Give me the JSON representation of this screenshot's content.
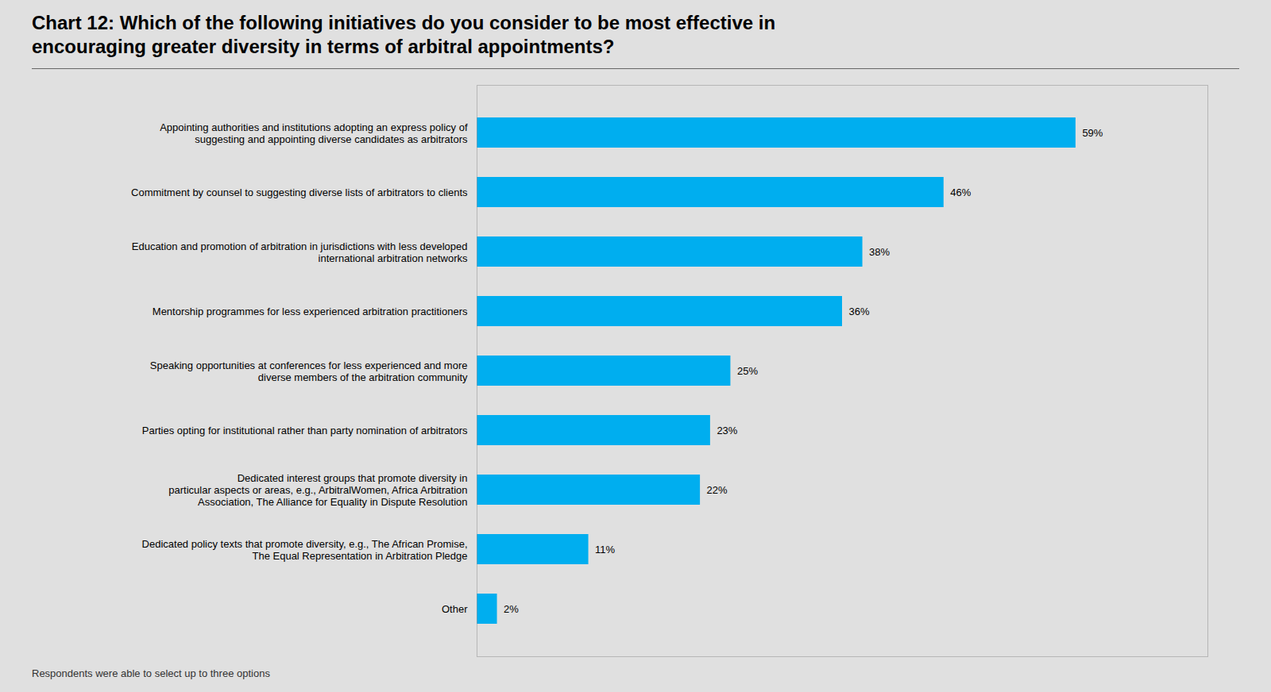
{
  "chart_data": {
    "type": "bar",
    "orientation": "horizontal",
    "title": "Chart 12: Which of the following initiatives do you consider to be most effective in\nencouraging greater diversity in terms of arbitral appointments?",
    "categories": [
      "Other",
      "Dedicated policy texts that promote diversity, e.g., The African Promise,\nThe Equal Representation in Arbitration Pledge",
      "Dedicated interest groups that promote diversity in\nparticular aspects or areas, e.g., ArbitralWomen, Africa Arbitration\nAssociation, The Alliance for Equality in Dispute Resolution",
      "Parties opting for institutional rather than party nomination of arbitrators",
      "Speaking opportunities at conferences for less experienced and more\ndiverse members of the arbitration community",
      "Mentorship programmes for less experienced arbitration practitioners",
      "Education and promotion of arbitration in jurisdictions with less developed\ninternational arbitration networks",
      "Commitment by counsel to suggesting diverse lists of arbitrators to clients",
      "Appointing authorities and institutions adopting an express policy of\nsuggesting and appointing diverse candidates as arbitrators"
    ],
    "values": [
      2,
      11,
      22,
      23,
      25,
      36,
      38,
      46,
      59
    ],
    "value_labels": [
      "2%",
      "11%",
      "22%",
      "23%",
      "25%",
      "36%",
      "38%",
      "46%",
      "59%"
    ],
    "data_labels": true,
    "color": "#00AEEF",
    "xlim": [
      0,
      72
    ],
    "tick_labels": "y",
    "grid": false,
    "footnote": "Respondents were able to select up to three options"
  }
}
